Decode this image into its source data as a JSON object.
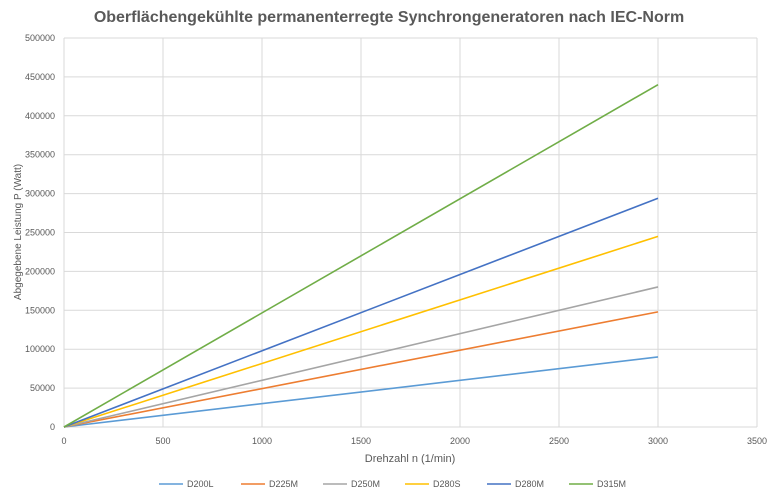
{
  "chart_data": {
    "type": "line",
    "title": "Oberflächengekühlte permanenterregte Synchrongeneratoren nach IEC-Norm",
    "xlabel": "Drehzahl n (1/min)",
    "ylabel": "Abgegebene Leistung P (Watt)",
    "xlim": [
      0,
      3500
    ],
    "ylim": [
      0,
      500000
    ],
    "x_ticks": [
      0,
      500,
      1000,
      1500,
      2000,
      2500,
      3000,
      3500
    ],
    "y_ticks": [
      0,
      50000,
      100000,
      150000,
      200000,
      250000,
      300000,
      350000,
      400000,
      450000,
      500000
    ],
    "x_tick_labels": [
      "0",
      "500",
      "1000",
      "1500",
      "2000",
      "2500",
      "3000",
      "3500"
    ],
    "y_tick_labels": [
      "0",
      "50000",
      "100000",
      "150000",
      "200000",
      "250000",
      "300000",
      "350000",
      "400000",
      "450000",
      "500000"
    ],
    "grid": true,
    "legend_position": "bottom",
    "series": [
      {
        "name": "D200L",
        "color": "#5b9bd5",
        "x": [
          0,
          3000
        ],
        "values": [
          0,
          90000
        ]
      },
      {
        "name": "D225M",
        "color": "#ed7d31",
        "x": [
          0,
          3000
        ],
        "values": [
          0,
          148000
        ]
      },
      {
        "name": "D250M",
        "color": "#a5a5a5",
        "x": [
          0,
          3000
        ],
        "values": [
          0,
          180000
        ]
      },
      {
        "name": "D280S",
        "color": "#ffc000",
        "x": [
          0,
          3000
        ],
        "values": [
          0,
          245000
        ]
      },
      {
        "name": "D280M",
        "color": "#4472c4",
        "x": [
          0,
          3000
        ],
        "values": [
          0,
          294000
        ]
      },
      {
        "name": "D315M",
        "color": "#70ad47",
        "x": [
          0,
          3000
        ],
        "values": [
          0,
          440000
        ]
      }
    ]
  }
}
